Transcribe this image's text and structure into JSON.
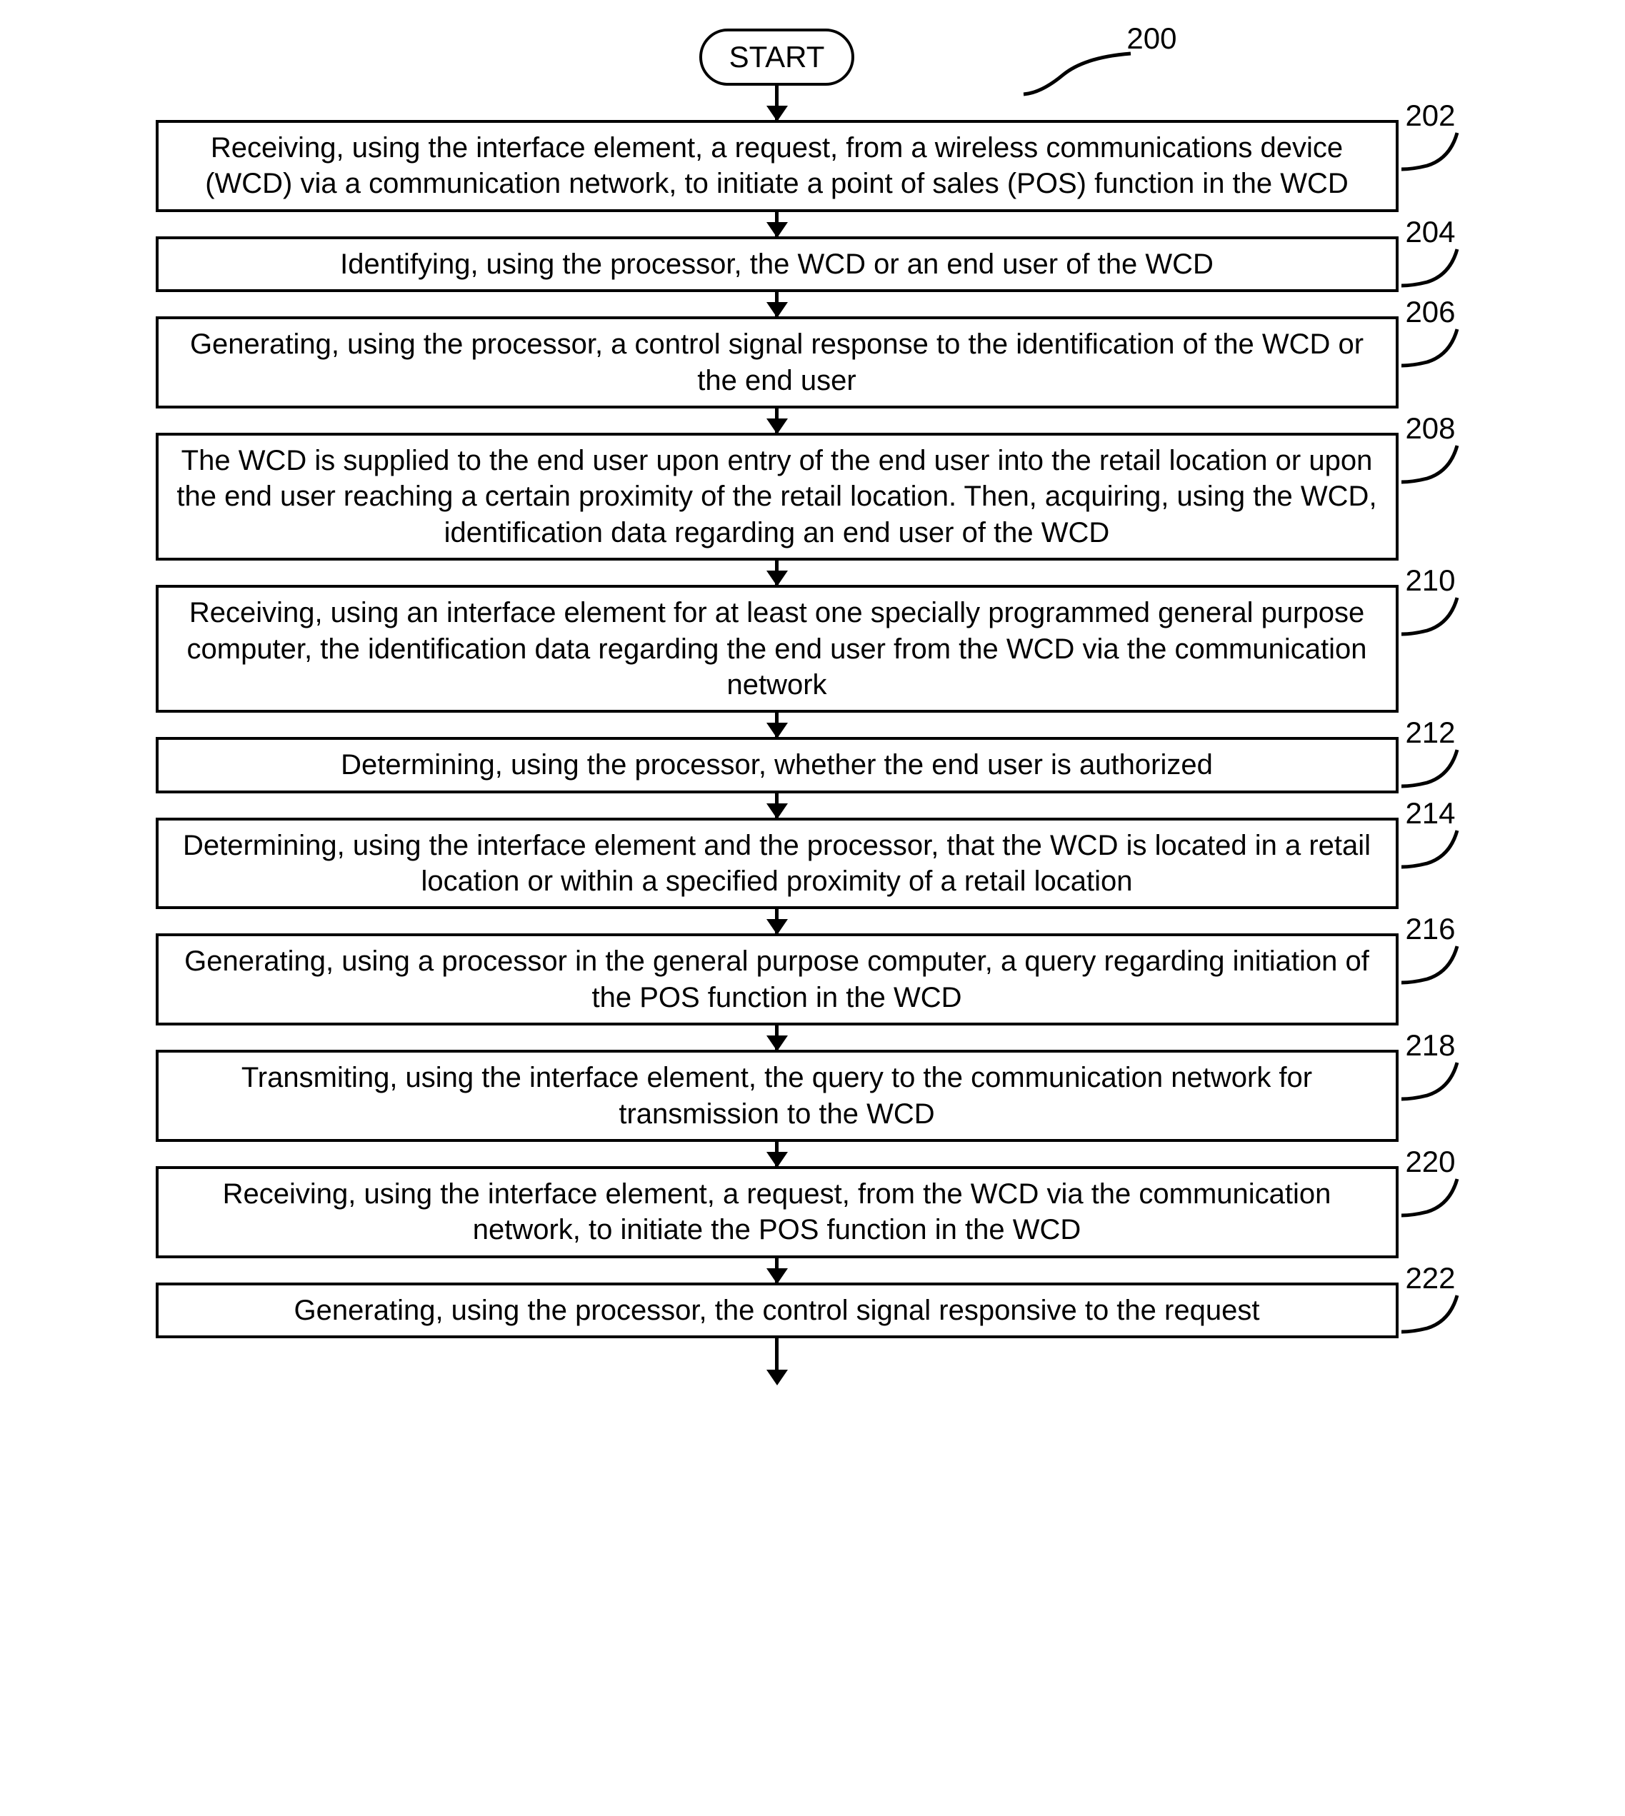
{
  "flowchart": {
    "id_label": "200",
    "start_label": "START",
    "colors": {
      "stroke": "#000000",
      "background": "#ffffff",
      "text": "#000000"
    },
    "stroke_width": 4,
    "start_border_radius": 40,
    "font_family": "Arial",
    "font_size": 40,
    "label_font_size": 42,
    "steps": [
      {
        "num": "202",
        "text": "Receiving, using the interface element, a request, from a wireless communications device (WCD) via a communication network, to initiate a point of sales (POS) function in the WCD"
      },
      {
        "num": "204",
        "text": "Identifying, using the processor, the WCD or an end user of the WCD"
      },
      {
        "num": "206",
        "text": "Generating, using the processor, a control signal response to the identification of the WCD or the end user"
      },
      {
        "num": "208",
        "text": "The WCD is supplied to the end user upon entry of the end user into the retail location or upon the end user reaching a certain proximity of the retail location. Then, acquiring, using the WCD, identification data regarding an end user of the WCD"
      },
      {
        "num": "210",
        "text": "Receiving, using an interface element for at least one specially programmed general purpose computer, the identification data regarding the end user from the WCD via the communication network"
      },
      {
        "num": "212",
        "text": "Determining, using the processor, whether the end user is authorized"
      },
      {
        "num": "214",
        "text": "Determining, using the interface element and the processor, that the WCD is located in a retail location or within a specified proximity of a retail location"
      },
      {
        "num": "216",
        "text": "Generating, using a processor in the general purpose computer, a query regarding initiation of the POS function in the WCD"
      },
      {
        "num": "218",
        "text": "Transmiting, using the interface element, the query to the communication network for transmission to the WCD"
      },
      {
        "num": "220",
        "text": "Receiving, using the interface element, a request, from the WCD via the communication network, to initiate the POS function in the WCD"
      },
      {
        "num": "222",
        "text": "Generating, using the processor, the control signal responsive to the request"
      }
    ]
  }
}
